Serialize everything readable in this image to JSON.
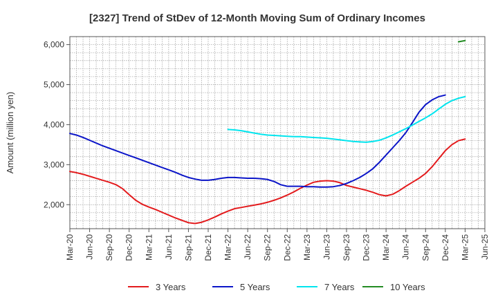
{
  "chart_data": {
    "type": "line",
    "title": "[2327]  Trend of StDev of 12-Month Moving Sum of Ordinary Incomes",
    "xlabel": "",
    "ylabel": "Amount (million yen)",
    "ylim": [
      1400,
      6200
    ],
    "yticks": [
      2000,
      3000,
      4000,
      5000,
      6000
    ],
    "ytick_labels": [
      "2,000",
      "3,000",
      "4,000",
      "5,000",
      "6,000"
    ],
    "xticks": [
      "Mar-20",
      "Jun-20",
      "Sep-20",
      "Dec-20",
      "Mar-21",
      "Jun-21",
      "Sep-21",
      "Dec-21",
      "Mar-22",
      "Jun-22",
      "Sep-22",
      "Dec-22",
      "Mar-23",
      "Jun-23",
      "Sep-23",
      "Dec-23",
      "Mar-24",
      "Jun-24",
      "Sep-24",
      "Dec-24",
      "Mar-25",
      "Jun-25"
    ],
    "grid": true,
    "legend_position": "bottom",
    "series": [
      {
        "name": "3 Years",
        "color": "#e31a1c",
        "points": [
          [
            "Mar-20",
            2830
          ],
          [
            "Apr-20",
            2800
          ],
          [
            "May-20",
            2760
          ],
          [
            "Jun-20",
            2710
          ],
          [
            "Jul-20",
            2660
          ],
          [
            "Aug-20",
            2610
          ],
          [
            "Sep-20",
            2560
          ],
          [
            "Oct-20",
            2500
          ],
          [
            "Nov-20",
            2400
          ],
          [
            "Dec-20",
            2250
          ],
          [
            "Jan-21",
            2110
          ],
          [
            "Feb-21",
            2010
          ],
          [
            "Mar-21",
            1940
          ],
          [
            "Apr-21",
            1880
          ],
          [
            "May-21",
            1810
          ],
          [
            "Jun-21",
            1740
          ],
          [
            "Jul-21",
            1670
          ],
          [
            "Aug-21",
            1610
          ],
          [
            "Sep-21",
            1550
          ],
          [
            "Oct-21",
            1530
          ],
          [
            "Nov-21",
            1560
          ],
          [
            "Dec-21",
            1620
          ],
          [
            "Jan-22",
            1690
          ],
          [
            "Feb-22",
            1770
          ],
          [
            "Mar-22",
            1840
          ],
          [
            "Apr-22",
            1900
          ],
          [
            "May-22",
            1930
          ],
          [
            "Jun-22",
            1960
          ],
          [
            "Jul-22",
            1990
          ],
          [
            "Aug-22",
            2020
          ],
          [
            "Sep-22",
            2060
          ],
          [
            "Oct-22",
            2110
          ],
          [
            "Nov-22",
            2170
          ],
          [
            "Dec-22",
            2240
          ],
          [
            "Jan-23",
            2320
          ],
          [
            "Feb-23",
            2410
          ],
          [
            "Mar-23",
            2490
          ],
          [
            "Apr-23",
            2560
          ],
          [
            "May-23",
            2590
          ],
          [
            "Jun-23",
            2600
          ],
          [
            "Jul-23",
            2590
          ],
          [
            "Aug-23",
            2550
          ],
          [
            "Sep-23",
            2480
          ],
          [
            "Oct-23",
            2440
          ],
          [
            "Nov-23",
            2400
          ],
          [
            "Dec-23",
            2360
          ],
          [
            "Jan-24",
            2310
          ],
          [
            "Feb-24",
            2250
          ],
          [
            "Mar-24",
            2220
          ],
          [
            "Apr-24",
            2260
          ],
          [
            "May-24",
            2350
          ],
          [
            "Jun-24",
            2460
          ],
          [
            "Jul-24",
            2560
          ],
          [
            "Aug-24",
            2660
          ],
          [
            "Sep-24",
            2780
          ],
          [
            "Oct-24",
            2950
          ],
          [
            "Nov-24",
            3150
          ],
          [
            "Dec-24",
            3350
          ],
          [
            "Jan-25",
            3500
          ],
          [
            "Feb-25",
            3600
          ],
          [
            "Mar-25",
            3640
          ]
        ]
      },
      {
        "name": "5 Years",
        "color": "#0a14c8",
        "points": [
          [
            "Mar-20",
            3780
          ],
          [
            "Apr-20",
            3740
          ],
          [
            "May-20",
            3680
          ],
          [
            "Jun-20",
            3610
          ],
          [
            "Jul-20",
            3540
          ],
          [
            "Aug-20",
            3470
          ],
          [
            "Sep-20",
            3410
          ],
          [
            "Oct-20",
            3350
          ],
          [
            "Nov-20",
            3290
          ],
          [
            "Dec-20",
            3230
          ],
          [
            "Jan-21",
            3170
          ],
          [
            "Feb-21",
            3110
          ],
          [
            "Mar-21",
            3050
          ],
          [
            "Apr-21",
            2990
          ],
          [
            "May-21",
            2930
          ],
          [
            "Jun-21",
            2870
          ],
          [
            "Jul-21",
            2810
          ],
          [
            "Aug-21",
            2740
          ],
          [
            "Sep-21",
            2680
          ],
          [
            "Oct-21",
            2640
          ],
          [
            "Nov-21",
            2610
          ],
          [
            "Dec-21",
            2610
          ],
          [
            "Jan-22",
            2630
          ],
          [
            "Feb-22",
            2660
          ],
          [
            "Mar-22",
            2680
          ],
          [
            "Apr-22",
            2680
          ],
          [
            "May-22",
            2670
          ],
          [
            "Jun-22",
            2660
          ],
          [
            "Jul-22",
            2660
          ],
          [
            "Aug-22",
            2650
          ],
          [
            "Sep-22",
            2630
          ],
          [
            "Oct-22",
            2580
          ],
          [
            "Nov-22",
            2500
          ],
          [
            "Dec-22",
            2460
          ],
          [
            "Jan-23",
            2460
          ],
          [
            "Feb-23",
            2460
          ],
          [
            "Mar-23",
            2450
          ],
          [
            "Apr-23",
            2450
          ],
          [
            "May-23",
            2440
          ],
          [
            "Jun-23",
            2440
          ],
          [
            "Jul-23",
            2450
          ],
          [
            "Aug-23",
            2480
          ],
          [
            "Sep-23",
            2530
          ],
          [
            "Oct-23",
            2600
          ],
          [
            "Nov-23",
            2680
          ],
          [
            "Dec-23",
            2780
          ],
          [
            "Jan-24",
            2900
          ],
          [
            "Feb-24",
            3060
          ],
          [
            "Mar-24",
            3240
          ],
          [
            "Apr-24",
            3420
          ],
          [
            "May-24",
            3600
          ],
          [
            "Jun-24",
            3800
          ],
          [
            "Jul-24",
            4050
          ],
          [
            "Aug-24",
            4310
          ],
          [
            "Sep-24",
            4500
          ],
          [
            "Oct-24",
            4620
          ],
          [
            "Nov-24",
            4700
          ],
          [
            "Dec-24",
            4740
          ]
        ]
      },
      {
        "name": "7 Years",
        "color": "#00e5ee",
        "points": [
          [
            "Mar-22",
            3880
          ],
          [
            "Apr-22",
            3870
          ],
          [
            "May-22",
            3850
          ],
          [
            "Jun-22",
            3820
          ],
          [
            "Jul-22",
            3790
          ],
          [
            "Aug-22",
            3760
          ],
          [
            "Sep-22",
            3740
          ],
          [
            "Oct-22",
            3730
          ],
          [
            "Nov-22",
            3720
          ],
          [
            "Dec-22",
            3710
          ],
          [
            "Jan-23",
            3700
          ],
          [
            "Feb-23",
            3700
          ],
          [
            "Mar-23",
            3690
          ],
          [
            "Apr-23",
            3680
          ],
          [
            "May-23",
            3670
          ],
          [
            "Jun-23",
            3660
          ],
          [
            "Jul-23",
            3640
          ],
          [
            "Aug-23",
            3620
          ],
          [
            "Sep-23",
            3600
          ],
          [
            "Oct-23",
            3580
          ],
          [
            "Nov-23",
            3570
          ],
          [
            "Dec-23",
            3560
          ],
          [
            "Jan-24",
            3580
          ],
          [
            "Feb-24",
            3610
          ],
          [
            "Mar-24",
            3670
          ],
          [
            "Apr-24",
            3740
          ],
          [
            "May-24",
            3820
          ],
          [
            "Jun-24",
            3900
          ],
          [
            "Jul-24",
            3990
          ],
          [
            "Aug-24",
            4080
          ],
          [
            "Sep-24",
            4170
          ],
          [
            "Oct-24",
            4270
          ],
          [
            "Nov-24",
            4390
          ],
          [
            "Dec-24",
            4510
          ],
          [
            "Jan-25",
            4600
          ],
          [
            "Feb-25",
            4660
          ],
          [
            "Mar-25",
            4700
          ]
        ]
      },
      {
        "name": "10 Years",
        "color": "#228b22",
        "points": [
          [
            "Feb-25",
            6070
          ],
          [
            "Mar-25",
            6100
          ]
        ]
      }
    ]
  }
}
